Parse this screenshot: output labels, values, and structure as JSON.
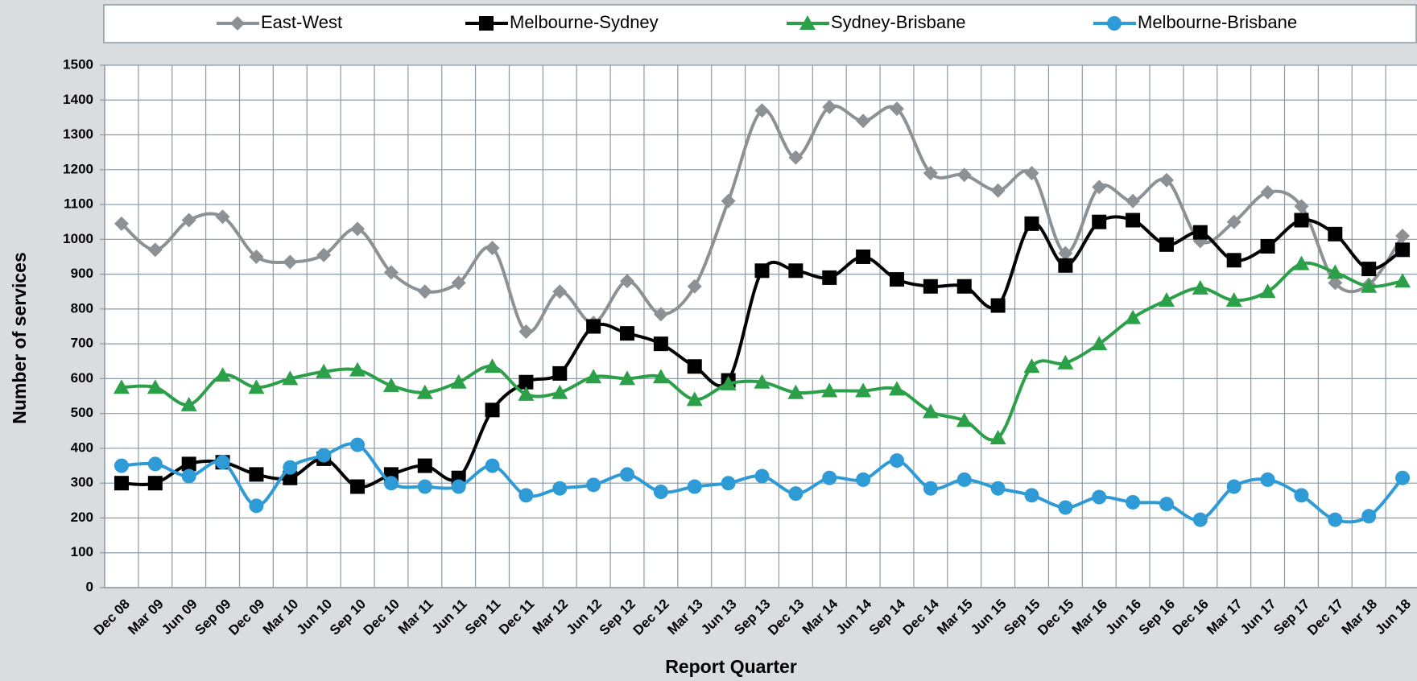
{
  "chart_data": {
    "type": "line",
    "x_label": "Report Quarter",
    "y_label": "Number of services",
    "categories": [
      "Dec 08",
      "Mar 09",
      "Jun 09",
      "Sep 09",
      "Dec 09",
      "Mar 10",
      "Jun 10",
      "Sep 10",
      "Dec 10",
      "Mar 11",
      "Jun 11",
      "Sep 11",
      "Dec 11",
      "Mar 12",
      "Jun 12",
      "Sep 12",
      "Dec 12",
      "Mar 13",
      "Jun 13",
      "Sep 13",
      "Dec 13",
      "Mar 14",
      "Jun 14",
      "Sep 14",
      "Dec 14",
      "Mar 15",
      "Jun 15",
      "Sep 15",
      "Dec 15",
      "Mar 16",
      "Jun 16",
      "Sep 16",
      "Dec 16",
      "Mar 17",
      "Jun 17",
      "Sep 17",
      "Dec 17",
      "Mar 18",
      "Jun 18"
    ],
    "series": [
      {
        "name": "East-West",
        "color": "#8c9196",
        "marker": "diamond",
        "values": [
          1045,
          970,
          1055,
          1065,
          950,
          935,
          955,
          1030,
          905,
          850,
          875,
          975,
          735,
          850,
          760,
          880,
          785,
          865,
          1110,
          1370,
          1235,
          1380,
          1340,
          1375,
          1190,
          1185,
          1140,
          1190,
          960,
          1150,
          1110,
          1170,
          995,
          1050,
          1135,
          1095,
          875,
          870,
          1010
        ]
      },
      {
        "name": "Melbourne-Sydney",
        "color": "#000000",
        "marker": "square",
        "values": [
          300,
          300,
          355,
          360,
          325,
          315,
          370,
          290,
          325,
          350,
          315,
          510,
          590,
          615,
          750,
          730,
          700,
          635,
          595,
          910,
          910,
          890,
          950,
          885,
          865,
          865,
          810,
          1045,
          925,
          1050,
          1055,
          985,
          1020,
          940,
          980,
          1055,
          1015,
          915,
          970
        ]
      },
      {
        "name": "Sydney-Brisbane",
        "color": "#2ca048",
        "marker": "triangle",
        "values": [
          575,
          575,
          525,
          610,
          575,
          600,
          620,
          625,
          580,
          560,
          590,
          635,
          555,
          560,
          605,
          600,
          605,
          540,
          585,
          590,
          560,
          565,
          565,
          570,
          505,
          480,
          430,
          635,
          645,
          700,
          775,
          825,
          860,
          825,
          850,
          930,
          905,
          865,
          880
        ]
      },
      {
        "name": "Melbourne-Brisbane",
        "color": "#2e9bd6",
        "marker": "circle",
        "values": [
          350,
          355,
          320,
          360,
          235,
          345,
          380,
          410,
          300,
          290,
          290,
          350,
          265,
          285,
          295,
          325,
          275,
          290,
          300,
          320,
          270,
          315,
          310,
          365,
          285,
          310,
          285,
          265,
          230,
          260,
          245,
          240,
          195,
          290,
          310,
          265,
          195,
          205,
          315
        ]
      }
    ],
    "ylim": [
      0,
      1500
    ],
    "yticks": [
      0,
      100,
      200,
      300,
      400,
      500,
      600,
      700,
      800,
      900,
      1000,
      1100,
      1200,
      1300,
      1400,
      1500
    ],
    "grid": true,
    "smooth": true,
    "legend": "top"
  }
}
